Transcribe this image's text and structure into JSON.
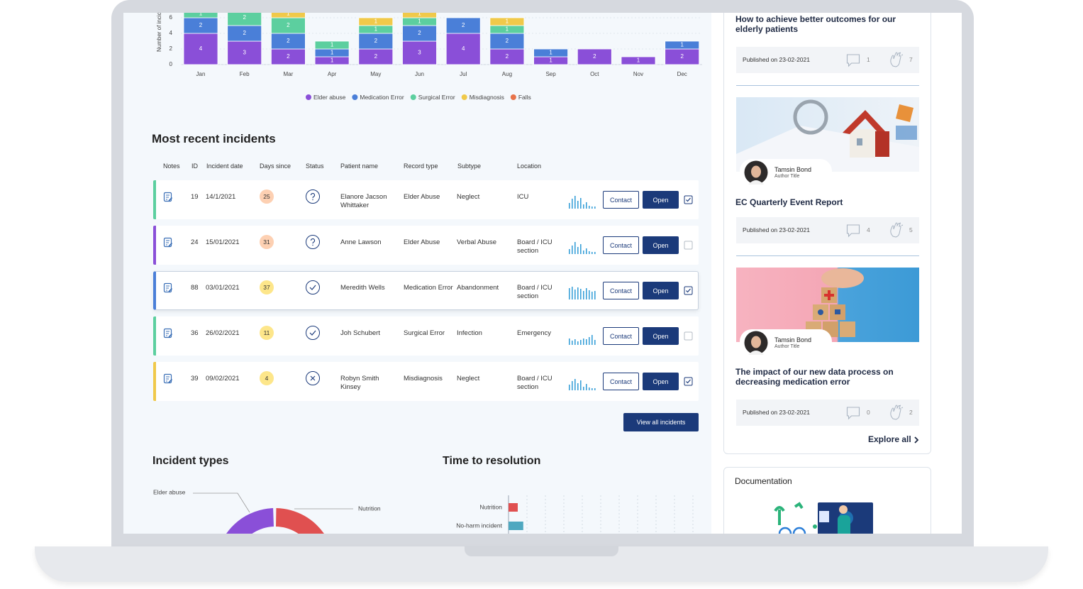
{
  "bar_chart": {
    "type": "bar",
    "stacked": true,
    "y_label": "Number of incidents",
    "categories": [
      "Jan",
      "Feb",
      "Mar",
      "Apr",
      "May",
      "Jun",
      "Jul",
      "Aug",
      "Sep",
      "Oct",
      "Nov",
      "Dec"
    ],
    "series": [
      {
        "name": "Elder abuse",
        "color": "#8a4fd8",
        "values": [
          4,
          3,
          2,
          1,
          2,
          3,
          4,
          2,
          1,
          2,
          1,
          2
        ]
      },
      {
        "name": "Medication Error",
        "color": "#4a7fd8",
        "values": [
          2,
          2,
          2,
          1,
          2,
          2,
          2,
          2,
          1,
          null,
          null,
          1
        ]
      },
      {
        "name": "Surgical Error",
        "color": "#5ccf9f",
        "values": [
          1,
          2,
          2,
          1,
          1,
          1,
          null,
          1,
          null,
          null,
          null,
          null
        ]
      },
      {
        "name": "Misdiagnosis",
        "color": "#f0c94a",
        "values": [
          null,
          null,
          1,
          null,
          1,
          1,
          null,
          1,
          null,
          null,
          null,
          null
        ]
      },
      {
        "name": "Falls",
        "color": "#e8734a",
        "values": [
          null,
          null,
          null,
          null,
          null,
          null,
          null,
          null,
          null,
          null,
          null,
          null
        ]
      }
    ],
    "ylim": [
      0,
      8
    ],
    "yticks": [
      0,
      2,
      4,
      6
    ],
    "grid": true
  },
  "table": {
    "title": "Most recent incidents",
    "columns": [
      "Notes",
      "ID",
      "Incident date",
      "Days since",
      "Status",
      "Patient name",
      "Record type",
      "Subtype",
      "Location"
    ],
    "rows": [
      [
        19,
        "14/1/2021",
        25,
        "Elanore Jacson Whittaker",
        "Elder Abuse",
        "Neglect",
        "ICU"
      ],
      [
        24,
        "15/01/2021",
        31,
        "Anne Lawson",
        "Elder Abuse",
        "Verbal Abuse",
        "Board / ICU section"
      ],
      [
        88,
        "03/01/2021",
        37,
        "Meredith Wells",
        "Medication Error",
        "Abandonment",
        "Board / ICU section"
      ],
      [
        36,
        "26/02/2021",
        11,
        "Joh Schubert",
        "Surgical Error",
        "Infection",
        "Emergency"
      ],
      [
        39,
        "09/02/2021",
        4,
        "Robyn Smith Kinsey",
        "Misdiagnosis",
        "Neglect",
        "Board / ICU section"
      ]
    ],
    "contact": "Contact",
    "open": "Open",
    "view_all": "View all incidents"
  },
  "incident_types": {
    "title": "Incident types",
    "labels": [
      "Elder abuse",
      "Nutrition"
    ]
  },
  "time_to_resolution": {
    "type": "bar",
    "orientation": "horizontal",
    "title": "Time to resolution",
    "categories": [
      "Nutrition",
      "No-harm incident"
    ],
    "values": [
      0.5,
      0.8
    ],
    "colors": [
      "#e05050",
      "#4fa8c0"
    ],
    "xlim": [
      0,
      10
    ],
    "xticks": [
      0,
      1,
      2,
      3,
      4,
      5,
      6,
      7,
      8,
      9,
      10
    ],
    "grid": true
  },
  "articles": [
    {
      "title": "How to achieve better outcomes for our elderly patients",
      "published": "Published on 23-02-2021",
      "comments": 1,
      "likes": 7
    },
    {
      "author": "Tamsin Bond",
      "author_title": "Author Title",
      "title": "EC Quarterly Event Report",
      "published": "Published on 23-02-2021",
      "comments": 4,
      "likes": 5
    },
    {
      "author": "Tamsin Bond",
      "author_title": "Author Title",
      "title": "The impact of our new data process on decreasing medication error",
      "published": "Published on 23-02-2021",
      "comments": 0,
      "likes": 2
    }
  ],
  "explore_all": "Explore all",
  "documentation": {
    "title": "Documentation"
  }
}
